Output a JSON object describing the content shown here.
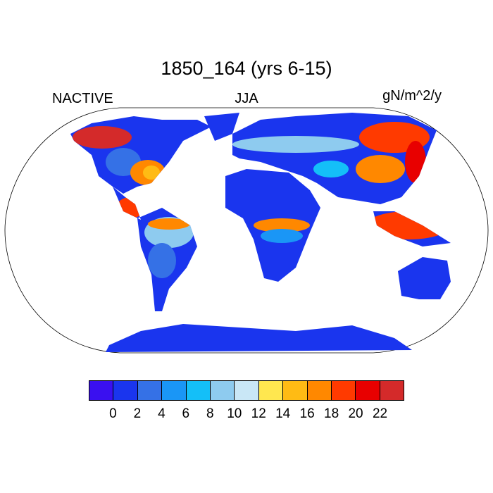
{
  "title": "1850_164 (yrs 6-15)",
  "left_label": "NACTIVE",
  "center_label": "JJA",
  "right_label": "gN/m^2/y",
  "colorbar": {
    "colors": [
      "#3a10f0",
      "#1a35ee",
      "#3571e6",
      "#1a96f6",
      "#14bff8",
      "#8ecbef",
      "#c9e7f6",
      "#ffe74f",
      "#ffbb14",
      "#ff8800",
      "#ff3a00",
      "#e80000",
      "#d42a2a"
    ],
    "labels": [
      "0",
      "2",
      "4",
      "6",
      "8",
      "10",
      "12",
      "14",
      "16",
      "18",
      "20",
      "22"
    ]
  }
}
